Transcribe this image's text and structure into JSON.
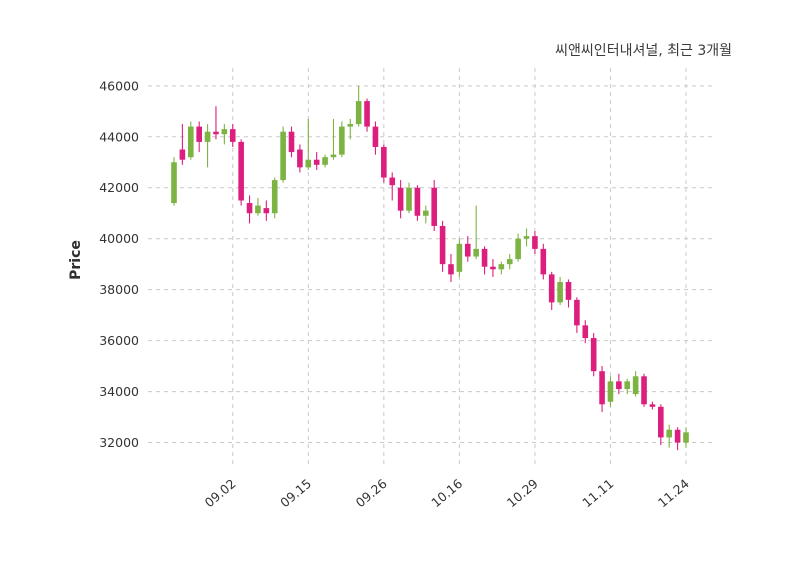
{
  "header": {
    "title": "씨앤씨인터내셔널, 최근 3개월"
  },
  "axes": {
    "ylabel": "Price"
  },
  "colors": {
    "up": "#7cb342",
    "down": "#dc1f7e",
    "grid": "#c9c9c9",
    "tick_label": "#333333",
    "title_text": "#3c3c3c",
    "background": "#ffffff"
  },
  "chart_data": {
    "type": "candlestick",
    "title": "씨앤씨인터내셔널, 최근 3개월",
    "ylabel": "Price",
    "ylim": [
      31000,
      46700
    ],
    "grid": true,
    "legend": "none",
    "up_color": "#7cb342",
    "down_color": "#dc1f7e",
    "yticks": [
      32000,
      34000,
      36000,
      38000,
      40000,
      42000,
      44000,
      46000
    ],
    "ytick_labels": [
      "32000",
      "34000",
      "36000",
      "38000",
      "40000",
      "42000",
      "44000",
      "46000"
    ],
    "xtick_labels": [
      "09.02",
      "09.15",
      "09.26",
      "10.16",
      "10.29",
      "11.11",
      "11.24"
    ],
    "xtick_indices": [
      7,
      16,
      25,
      34,
      43,
      52,
      61
    ],
    "candles": [
      {
        "date": "08.22",
        "open": 41400,
        "high": 43200,
        "low": 41300,
        "close": 43000
      },
      {
        "date": "08.25",
        "open": 43500,
        "high": 44500,
        "low": 42900,
        "close": 43100
      },
      {
        "date": "08.26",
        "open": 43200,
        "high": 44600,
        "low": 43100,
        "close": 44400
      },
      {
        "date": "08.27",
        "open": 44400,
        "high": 44600,
        "low": 43400,
        "close": 43800
      },
      {
        "date": "08.28",
        "open": 43800,
        "high": 44500,
        "low": 42800,
        "close": 44200
      },
      {
        "date": "08.29",
        "open": 44200,
        "high": 45200,
        "low": 43900,
        "close": 44100
      },
      {
        "date": "09.01",
        "open": 44100,
        "high": 44500,
        "low": 43700,
        "close": 44300
      },
      {
        "date": "09.02",
        "open": 44300,
        "high": 44500,
        "low": 43600,
        "close": 43800
      },
      {
        "date": "09.03",
        "open": 43800,
        "high": 43900,
        "low": 41300,
        "close": 41500
      },
      {
        "date": "09.04",
        "open": 41400,
        "high": 41700,
        "low": 40600,
        "close": 41000
      },
      {
        "date": "09.05",
        "open": 41000,
        "high": 41600,
        "low": 40900,
        "close": 41300
      },
      {
        "date": "09.08",
        "open": 41200,
        "high": 41500,
        "low": 40700,
        "close": 41000
      },
      {
        "date": "09.09",
        "open": 41000,
        "high": 42400,
        "low": 40800,
        "close": 42300
      },
      {
        "date": "09.10",
        "open": 42300,
        "high": 44400,
        "low": 42200,
        "close": 44200
      },
      {
        "date": "09.11",
        "open": 44200,
        "high": 44400,
        "low": 43200,
        "close": 43400
      },
      {
        "date": "09.12",
        "open": 43500,
        "high": 43700,
        "low": 42600,
        "close": 42800
      },
      {
        "date": "09.15",
        "open": 42800,
        "high": 44700,
        "low": 42700,
        "close": 43100
      },
      {
        "date": "09.16",
        "open": 43100,
        "high": 43400,
        "low": 42700,
        "close": 42900
      },
      {
        "date": "09.17",
        "open": 42900,
        "high": 43300,
        "low": 42800,
        "close": 43200
      },
      {
        "date": "09.18",
        "open": 43200,
        "high": 44700,
        "low": 43100,
        "close": 43300
      },
      {
        "date": "09.19",
        "open": 43300,
        "high": 44600,
        "low": 43200,
        "close": 44400
      },
      {
        "date": "09.22",
        "open": 44400,
        "high": 44700,
        "low": 43900,
        "close": 44500
      },
      {
        "date": "09.23",
        "open": 44500,
        "high": 46000,
        "low": 44400,
        "close": 45400
      },
      {
        "date": "09.24",
        "open": 45400,
        "high": 45500,
        "low": 44200,
        "close": 44400
      },
      {
        "date": "09.25",
        "open": 44400,
        "high": 44600,
        "low": 43300,
        "close": 43600
      },
      {
        "date": "09.26",
        "open": 43600,
        "high": 43700,
        "low": 42200,
        "close": 42400
      },
      {
        "date": "09.29",
        "open": 42400,
        "high": 42600,
        "low": 41500,
        "close": 42100
      },
      {
        "date": "09.30",
        "open": 42000,
        "high": 42300,
        "low": 40800,
        "close": 41100
      },
      {
        "date": "10.01",
        "open": 41100,
        "high": 42200,
        "low": 41000,
        "close": 42000
      },
      {
        "date": "10.02",
        "open": 42000,
        "high": 42100,
        "low": 40700,
        "close": 40900
      },
      {
        "date": "10.10",
        "open": 40900,
        "high": 41300,
        "low": 40600,
        "close": 41100
      },
      {
        "date": "10.13",
        "open": 42000,
        "high": 42300,
        "low": 40300,
        "close": 40500
      },
      {
        "date": "10.14",
        "open": 40500,
        "high": 40700,
        "low": 38700,
        "close": 39000
      },
      {
        "date": "10.15",
        "open": 39000,
        "high": 39400,
        "low": 38300,
        "close": 38600
      },
      {
        "date": "10.16",
        "open": 38700,
        "high": 40000,
        "low": 38500,
        "close": 39800
      },
      {
        "date": "10.17",
        "open": 39800,
        "high": 40100,
        "low": 39100,
        "close": 39300
      },
      {
        "date": "10.20",
        "open": 39300,
        "high": 41300,
        "low": 39200,
        "close": 39600
      },
      {
        "date": "10.21",
        "open": 39600,
        "high": 39700,
        "low": 38600,
        "close": 38900
      },
      {
        "date": "10.22",
        "open": 38900,
        "high": 39200,
        "low": 38500,
        "close": 38800
      },
      {
        "date": "10.23",
        "open": 38800,
        "high": 39100,
        "low": 38600,
        "close": 39000
      },
      {
        "date": "10.24",
        "open": 39000,
        "high": 39400,
        "low": 38800,
        "close": 39200
      },
      {
        "date": "10.27",
        "open": 39200,
        "high": 40200,
        "low": 39100,
        "close": 40000
      },
      {
        "date": "10.28",
        "open": 40000,
        "high": 40400,
        "low": 39700,
        "close": 40100
      },
      {
        "date": "10.29",
        "open": 40100,
        "high": 40300,
        "low": 39400,
        "close": 39600
      },
      {
        "date": "10.30",
        "open": 39600,
        "high": 39800,
        "low": 38400,
        "close": 38600
      },
      {
        "date": "10.31",
        "open": 38600,
        "high": 38700,
        "low": 37200,
        "close": 37500
      },
      {
        "date": "11.03",
        "open": 37500,
        "high": 38500,
        "low": 37400,
        "close": 38300
      },
      {
        "date": "11.04",
        "open": 38300,
        "high": 38400,
        "low": 37300,
        "close": 37600
      },
      {
        "date": "11.05",
        "open": 37600,
        "high": 37700,
        "low": 36300,
        "close": 36600
      },
      {
        "date": "11.06",
        "open": 36600,
        "high": 36800,
        "low": 35900,
        "close": 36100
      },
      {
        "date": "11.07",
        "open": 36100,
        "high": 36300,
        "low": 34600,
        "close": 34800
      },
      {
        "date": "11.10",
        "open": 34800,
        "high": 35000,
        "low": 33200,
        "close": 33500
      },
      {
        "date": "11.11",
        "open": 33600,
        "high": 34600,
        "low": 33400,
        "close": 34400
      },
      {
        "date": "11.12",
        "open": 34400,
        "high": 34700,
        "low": 33900,
        "close": 34100
      },
      {
        "date": "11.13",
        "open": 34100,
        "high": 34500,
        "low": 33900,
        "close": 34400
      },
      {
        "date": "11.14",
        "open": 33900,
        "high": 34800,
        "low": 33800,
        "close": 34600
      },
      {
        "date": "11.17",
        "open": 34600,
        "high": 34700,
        "low": 33400,
        "close": 33500
      },
      {
        "date": "11.18",
        "open": 33500,
        "high": 33600,
        "low": 33300,
        "close": 33400
      },
      {
        "date": "11.19",
        "open": 33400,
        "high": 33500,
        "low": 31900,
        "close": 32200
      },
      {
        "date": "11.20",
        "open": 32200,
        "high": 32700,
        "low": 31800,
        "close": 32500
      },
      {
        "date": "11.21",
        "open": 32500,
        "high": 32600,
        "low": 31700,
        "close": 32000
      },
      {
        "date": "11.24",
        "open": 32000,
        "high": 32600,
        "low": 31800,
        "close": 32400
      }
    ]
  }
}
